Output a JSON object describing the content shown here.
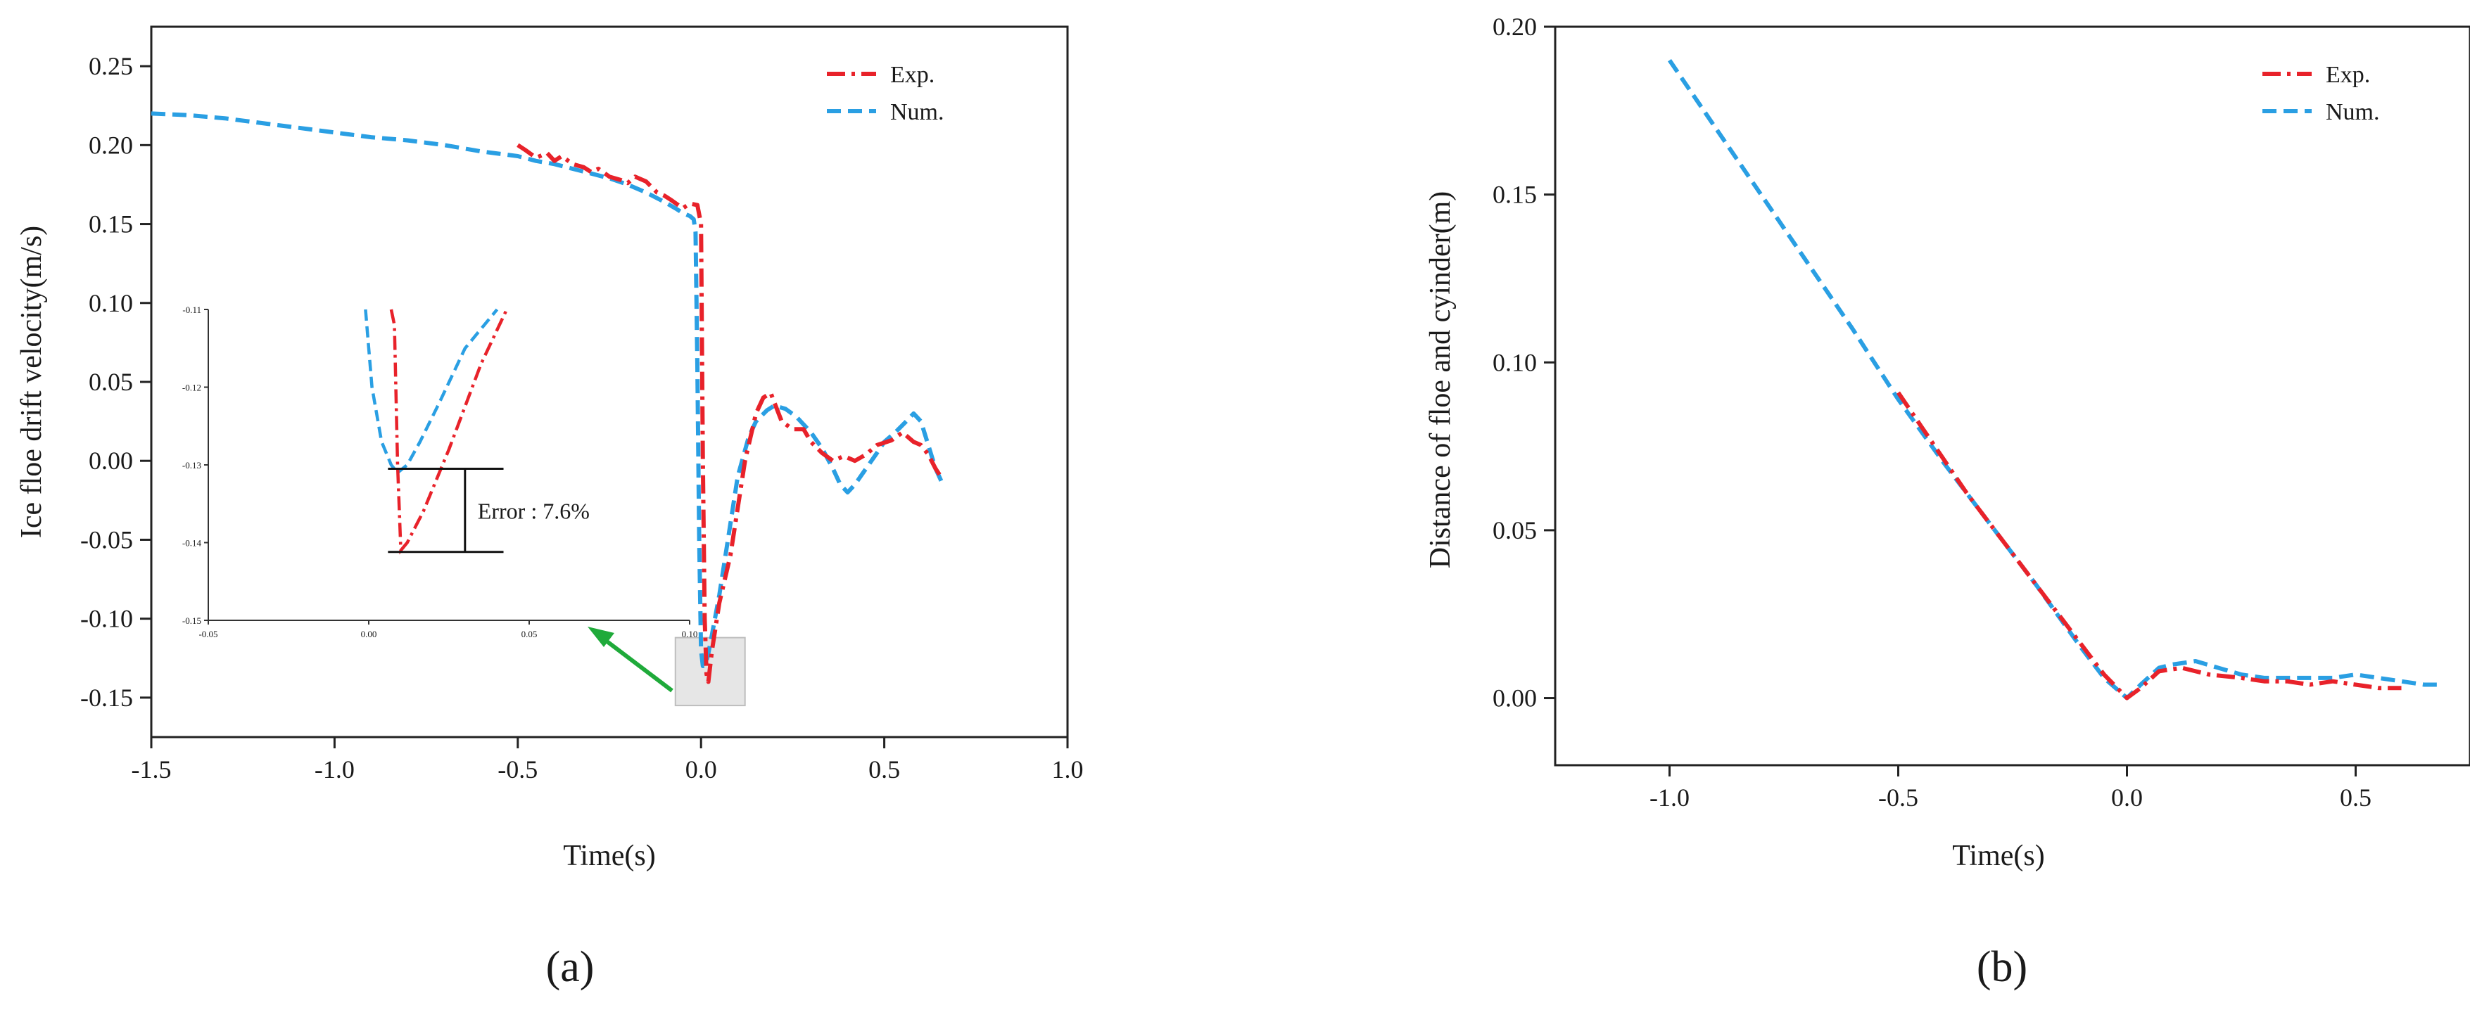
{
  "panel_labels": {
    "a": "(a)",
    "b": "(b)"
  },
  "colors": {
    "exp": "#e8222a",
    "num": "#2a9fe3",
    "arrow": "#1faa3a",
    "zoom_box_fill": "#e6e6e6",
    "zoom_box_stroke": "#bdbdbd",
    "axis": "#222222"
  },
  "chart_data": [
    {
      "id": "a",
      "type": "line",
      "title": "",
      "xlabel": "Time(s)",
      "ylabel": "Ice floe drift velocity(m/s)",
      "xlim": [
        -1.5,
        1.0
      ],
      "ylim": [
        -0.175,
        0.275
      ],
      "xticks": [
        -1.5,
        -1.0,
        -0.5,
        0.0,
        0.5,
        1.0
      ],
      "xtick_labels": [
        "-1.5",
        "-1.0",
        "-0.5",
        "0.0",
        "0.5",
        "1.0"
      ],
      "yticks": [
        -0.15,
        -0.1,
        -0.05,
        0.0,
        0.05,
        0.1,
        0.15,
        0.2,
        0.25
      ],
      "ytick_labels": [
        "-0.15",
        "-0.10",
        "-0.05",
        "0.00",
        "0.05",
        "0.10",
        "0.15",
        "0.20",
        "0.25"
      ],
      "legend": {
        "position": "top-right",
        "entries": [
          "Exp.",
          "Num."
        ]
      },
      "series": [
        {
          "name": "Exp.",
          "style": "dash-dot",
          "x": [
            -0.5,
            -0.48,
            -0.45,
            -0.42,
            -0.4,
            -0.38,
            -0.35,
            -0.32,
            -0.3,
            -0.28,
            -0.25,
            -0.22,
            -0.2,
            -0.18,
            -0.15,
            -0.12,
            -0.1,
            -0.08,
            -0.05,
            -0.03,
            -0.01,
            0.0,
            0.005,
            0.01,
            0.015,
            0.02,
            0.03,
            0.05,
            0.08,
            0.1,
            0.12,
            0.15,
            0.17,
            0.19,
            0.22,
            0.25,
            0.28,
            0.3,
            0.33,
            0.36,
            0.39,
            0.42,
            0.45,
            0.48,
            0.52,
            0.55,
            0.58,
            0.6,
            0.62,
            0.64,
            0.66
          ],
          "y": [
            0.2,
            0.197,
            0.192,
            0.195,
            0.19,
            0.193,
            0.188,
            0.186,
            0.183,
            0.185,
            0.18,
            0.178,
            0.176,
            0.18,
            0.177,
            0.17,
            0.168,
            0.165,
            0.16,
            0.163,
            0.162,
            0.15,
            0.0,
            -0.1,
            -0.135,
            -0.14,
            -0.12,
            -0.09,
            -0.06,
            -0.03,
            0.0,
            0.03,
            0.04,
            0.043,
            0.025,
            0.02,
            0.02,
            0.012,
            0.005,
            0.0,
            0.003,
            0.0,
            0.004,
            0.01,
            0.013,
            0.018,
            0.012,
            0.01,
            0.004,
            -0.005,
            -0.012
          ]
        },
        {
          "name": "Num.",
          "style": "dashed",
          "x": [
            -1.5,
            -1.4,
            -1.3,
            -1.2,
            -1.1,
            -1.0,
            -0.9,
            -0.8,
            -0.7,
            -0.6,
            -0.5,
            -0.45,
            -0.4,
            -0.35,
            -0.3,
            -0.25,
            -0.2,
            -0.15,
            -0.1,
            -0.07,
            -0.05,
            -0.03,
            -0.02,
            -0.015,
            -0.01,
            -0.005,
            0.0,
            0.005,
            0.01,
            0.015,
            0.02,
            0.03,
            0.05,
            0.08,
            0.1,
            0.13,
            0.15,
            0.18,
            0.2,
            0.23,
            0.26,
            0.3,
            0.33,
            0.36,
            0.38,
            0.4,
            0.42,
            0.45,
            0.48,
            0.5,
            0.53,
            0.56,
            0.58,
            0.6,
            0.62,
            0.64,
            0.66
          ],
          "y": [
            0.22,
            0.219,
            0.217,
            0.214,
            0.211,
            0.208,
            0.205,
            0.203,
            0.2,
            0.196,
            0.193,
            0.19,
            0.188,
            0.185,
            0.182,
            0.179,
            0.175,
            0.17,
            0.164,
            0.16,
            0.157,
            0.155,
            0.153,
            0.145,
            0.06,
            -0.05,
            -0.12,
            -0.13,
            -0.13,
            -0.127,
            -0.122,
            -0.11,
            -0.085,
            -0.04,
            -0.01,
            0.015,
            0.025,
            0.032,
            0.035,
            0.033,
            0.028,
            0.018,
            0.008,
            -0.005,
            -0.015,
            -0.02,
            -0.015,
            -0.005,
            0.005,
            0.012,
            0.018,
            0.025,
            0.03,
            0.025,
            0.01,
            -0.005,
            -0.015
          ]
        }
      ],
      "inset": {
        "xlim": [
          -0.05,
          0.1
        ],
        "ylim": [
          -0.15,
          -0.11
        ],
        "xticks": [
          -0.05,
          0.0,
          0.05,
          0.1
        ],
        "xtick_labels": [
          "-0.05",
          "0.00",
          "0.05",
          "0.10"
        ],
        "yticks": [
          -0.11,
          -0.12,
          -0.13,
          -0.14,
          -0.15
        ],
        "ytick_labels": [
          "-0.11",
          "-0.12",
          "-0.13",
          "-0.14",
          "-0.15"
        ],
        "series": [
          {
            "name": "Exp.",
            "x": [
              0.007,
              0.008,
              0.009,
              0.01,
              0.012,
              0.017,
              0.025,
              0.035,
              0.043
            ],
            "y": [
              -0.11,
              -0.112,
              -0.13,
              -0.141,
              -0.14,
              -0.136,
              -0.128,
              -0.117,
              -0.11
            ]
          },
          {
            "name": "Num.",
            "x": [
              -0.001,
              0.001,
              0.004,
              0.007,
              0.009,
              0.012,
              0.016,
              0.022,
              0.03,
              0.04
            ],
            "y": [
              -0.11,
              -0.12,
              -0.127,
              -0.13,
              -0.131,
              -0.13,
              -0.127,
              -0.122,
              -0.115,
              -0.11
            ]
          }
        ],
        "error_annotation": {
          "label": "Error : 7.6%",
          "y_top": -0.1305,
          "y_bottom": -0.1412
        }
      },
      "zoom_region": {
        "x": [
          -0.07,
          0.12
        ],
        "y": [
          -0.155,
          -0.112
        ]
      }
    },
    {
      "id": "b",
      "type": "line",
      "title": "",
      "xlabel": "Time(s)",
      "ylabel": "Distance of floe and cyinder(m)",
      "xlim": [
        -1.25,
        0.75
      ],
      "ylim": [
        -0.02,
        0.2
      ],
      "xticks": [
        -1.0,
        -0.5,
        0.0,
        0.5
      ],
      "xtick_labels": [
        "-1.0",
        "-0.5",
        "0.0",
        "0.5"
      ],
      "yticks": [
        0.0,
        0.05,
        0.1,
        0.15,
        0.2
      ],
      "ytick_labels": [
        "0.00",
        "0.05",
        "0.10",
        "0.15",
        "0.20"
      ],
      "legend": {
        "position": "top-right",
        "entries": [
          "Exp.",
          "Num."
        ]
      },
      "series": [
        {
          "name": "Exp.",
          "style": "dash-dot",
          "x": [
            -0.5,
            -0.45,
            -0.4,
            -0.35,
            -0.3,
            -0.25,
            -0.2,
            -0.15,
            -0.1,
            -0.05,
            0.0,
            0.03,
            0.07,
            0.12,
            0.18,
            0.25,
            0.3,
            0.35,
            0.4,
            0.45,
            0.5,
            0.55,
            0.6
          ],
          "y": [
            0.091,
            0.081,
            0.071,
            0.061,
            0.052,
            0.043,
            0.034,
            0.025,
            0.016,
            0.007,
            0.0,
            0.003,
            0.008,
            0.009,
            0.007,
            0.006,
            0.005,
            0.005,
            0.004,
            0.005,
            0.004,
            0.003,
            0.003
          ]
        },
        {
          "name": "Num.",
          "style": "dashed",
          "x": [
            -1.0,
            -0.9,
            -0.8,
            -0.7,
            -0.6,
            -0.5,
            -0.4,
            -0.3,
            -0.2,
            -0.1,
            -0.05,
            0.0,
            0.03,
            0.07,
            0.1,
            0.15,
            0.2,
            0.25,
            0.3,
            0.35,
            0.4,
            0.45,
            0.5,
            0.55,
            0.6,
            0.65,
            0.68
          ],
          "y": [
            0.19,
            0.17,
            0.15,
            0.13,
            0.11,
            0.089,
            0.07,
            0.052,
            0.034,
            0.015,
            0.006,
            0.0,
            0.004,
            0.009,
            0.01,
            0.011,
            0.009,
            0.007,
            0.006,
            0.006,
            0.006,
            0.006,
            0.007,
            0.006,
            0.005,
            0.004,
            0.004
          ]
        }
      ]
    }
  ]
}
